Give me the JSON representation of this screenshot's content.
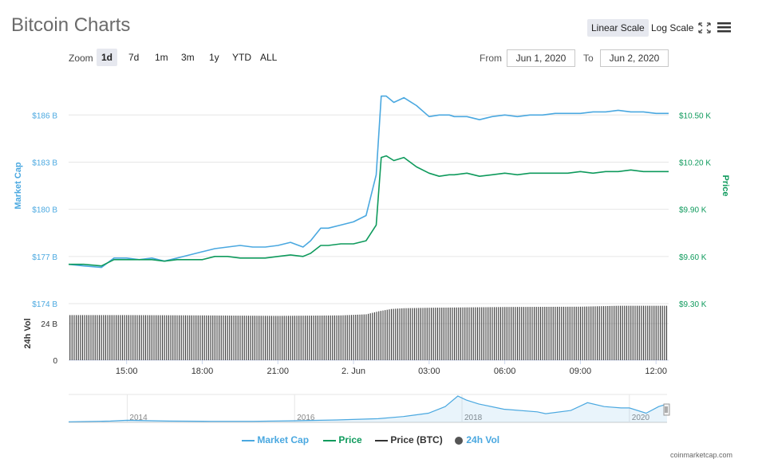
{
  "header": {
    "title": "Bitcoin Charts",
    "linear_scale": "Linear Scale",
    "log_scale": "Log Scale"
  },
  "zoom": {
    "label": "Zoom",
    "options": [
      "1d",
      "7d",
      "1m",
      "3m",
      "1y",
      "YTD",
      "ALL"
    ],
    "active": "1d"
  },
  "range": {
    "from_label": "From",
    "from_value": "Jun 1, 2020",
    "to_label": "To",
    "to_value": "Jun 2, 2020"
  },
  "legend": {
    "items": [
      {
        "label": "Market Cap",
        "color": "#4aa8e0"
      },
      {
        "label": "Price",
        "color": "#0e9a5c"
      },
      {
        "label": "Price (BTC)",
        "color": "#333333"
      },
      {
        "label": "24h Vol",
        "color": "#555555"
      }
    ]
  },
  "credit": "coinmarketcap.com",
  "colors": {
    "market_cap": "#4aa8e0",
    "price": "#0e9a5c",
    "volume": "#444444",
    "grid": "#e6e6e6"
  },
  "chart_data": {
    "type": "line",
    "title": "Bitcoin Charts",
    "x_ticks": [
      "15:00",
      "18:00",
      "21:00",
      "2. Jun",
      "03:00",
      "06:00",
      "09:00",
      "12:00"
    ],
    "x_tick_hours": [
      15,
      18,
      21,
      24,
      27,
      30,
      33,
      36
    ],
    "x_range_hours": [
      12.7,
      36.5
    ],
    "left_axis": {
      "label": "Market Cap",
      "ticks": [
        "$186 B",
        "$183 B",
        "$180 B",
        "$177 B",
        "$174 B"
      ],
      "tick_values": [
        186,
        183,
        180,
        177,
        174
      ],
      "range": [
        174,
        188.5
      ]
    },
    "right_axis": {
      "label": "Price",
      "ticks": [
        "$10.50 K",
        "$10.20 K",
        "$9.90 K",
        "$9.60 K",
        "$9.30 K"
      ],
      "tick_values": [
        10.5,
        10.2,
        9.9,
        9.6,
        9.3
      ],
      "range": [
        9.3,
        10.75
      ]
    },
    "volume_axis": {
      "label": "24h Vol",
      "ticks": [
        "24 B",
        "0"
      ],
      "tick_values": [
        24,
        0
      ],
      "range": [
        0,
        37
      ]
    },
    "series": [
      {
        "name": "Market Cap",
        "color": "#4aa8e0",
        "axis": "left",
        "x_hours": [
          12.7,
          13.3,
          14.0,
          14.5,
          15.0,
          15.5,
          16.0,
          16.5,
          17.0,
          17.5,
          18.0,
          18.5,
          19.0,
          19.5,
          20.0,
          20.5,
          21.0,
          21.5,
          22.0,
          22.3,
          22.7,
          23.0,
          23.5,
          24.0,
          24.5,
          24.9,
          25.1,
          25.3,
          25.6,
          26.0,
          26.5,
          27.0,
          27.4,
          27.8,
          28.0,
          28.5,
          29.0,
          29.5,
          30.0,
          30.5,
          31.0,
          31.5,
          32.0,
          32.5,
          33.0,
          33.5,
          34.0,
          34.5,
          35.0,
          35.5,
          36.0,
          36.5
        ],
        "values": [
          176.5,
          176.4,
          176.3,
          176.9,
          176.9,
          176.8,
          176.9,
          176.7,
          176.9,
          177.1,
          177.3,
          177.5,
          177.6,
          177.7,
          177.6,
          177.6,
          177.7,
          177.9,
          177.6,
          178.0,
          178.8,
          178.8,
          179.0,
          179.2,
          179.6,
          182.2,
          187.2,
          187.2,
          186.8,
          187.1,
          186.6,
          185.9,
          186.0,
          186.0,
          185.9,
          185.9,
          185.7,
          185.9,
          186.0,
          185.9,
          186.0,
          186.0,
          186.1,
          186.1,
          186.1,
          186.2,
          186.2,
          186.3,
          186.2,
          186.2,
          186.1,
          186.1
        ]
      },
      {
        "name": "Price",
        "color": "#0e9a5c",
        "axis": "right",
        "x_hours": [
          12.7,
          13.3,
          14.0,
          14.5,
          15.0,
          15.5,
          16.0,
          16.5,
          17.0,
          17.5,
          18.0,
          18.5,
          19.0,
          19.5,
          20.0,
          20.5,
          21.0,
          21.5,
          22.0,
          22.3,
          22.7,
          23.0,
          23.5,
          24.0,
          24.5,
          24.9,
          25.1,
          25.3,
          25.6,
          26.0,
          26.5,
          27.0,
          27.4,
          27.8,
          28.0,
          28.5,
          29.0,
          29.5,
          30.0,
          30.5,
          31.0,
          31.5,
          32.0,
          32.5,
          33.0,
          33.5,
          34.0,
          34.5,
          35.0,
          35.5,
          36.0,
          36.5
        ],
        "values": [
          9.55,
          9.55,
          9.54,
          9.58,
          9.58,
          9.58,
          9.58,
          9.57,
          9.58,
          9.58,
          9.58,
          9.6,
          9.6,
          9.59,
          9.59,
          9.59,
          9.6,
          9.61,
          9.6,
          9.62,
          9.67,
          9.67,
          9.68,
          9.68,
          9.7,
          9.8,
          10.23,
          10.24,
          10.21,
          10.23,
          10.17,
          10.13,
          10.11,
          10.12,
          10.12,
          10.13,
          10.11,
          10.12,
          10.13,
          10.12,
          10.13,
          10.13,
          10.13,
          10.13,
          10.14,
          10.13,
          10.14,
          10.14,
          10.15,
          10.14,
          10.14,
          10.14
        ]
      },
      {
        "name": "24h Vol",
        "color": "#444444",
        "axis": "volume",
        "x_hours": [
          12.7,
          15.0,
          18.0,
          21.0,
          23.5,
          24.5,
          25.0,
          25.5,
          26.0,
          27.0,
          30.0,
          33.0,
          34.5,
          36.5
        ],
        "values": [
          29.5,
          29.5,
          29.3,
          29.0,
          29.3,
          30.0,
          32.0,
          33.5,
          34.0,
          34.3,
          34.8,
          35.0,
          35.6,
          35.6
        ]
      }
    ],
    "navigator": {
      "ticks": [
        "2014",
        "2016",
        "2018",
        "2020"
      ],
      "tick_years": [
        2014,
        2016,
        2018,
        2020
      ],
      "x_range_years": [
        2013.3,
        2020.45
      ],
      "x_years": [
        2013.3,
        2013.8,
        2014.0,
        2014.5,
        2015.0,
        2015.5,
        2016.0,
        2016.5,
        2017.0,
        2017.3,
        2017.6,
        2017.8,
        2017.95,
        2018.05,
        2018.2,
        2018.5,
        2018.9,
        2019.0,
        2019.3,
        2019.5,
        2019.7,
        2019.9,
        2020.0,
        2020.2,
        2020.35,
        2020.45
      ],
      "values": [
        0.02,
        0.05,
        0.08,
        0.05,
        0.04,
        0.04,
        0.06,
        0.09,
        0.14,
        0.22,
        0.35,
        0.6,
        1.0,
        0.85,
        0.7,
        0.5,
        0.4,
        0.33,
        0.45,
        0.75,
        0.6,
        0.55,
        0.55,
        0.35,
        0.6,
        0.7
      ]
    }
  }
}
